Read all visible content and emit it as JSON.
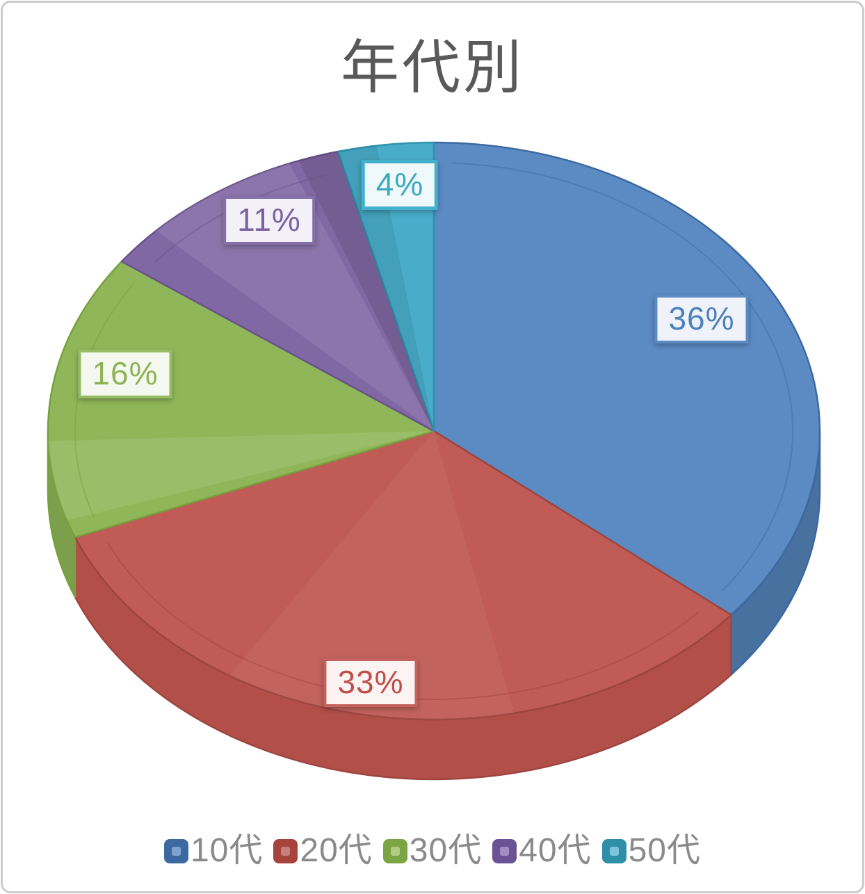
{
  "chart_data": {
    "type": "pie",
    "effect": "3d",
    "title": "年代別",
    "title_color": "#595959",
    "categories": [
      "10代",
      "20代",
      "30代",
      "40代",
      "50代"
    ],
    "values": [
      36,
      33,
      16,
      11,
      4
    ],
    "data_labels": [
      "36%",
      "33%",
      "16%",
      "11%",
      "4%"
    ],
    "unit": "%",
    "start_angle_deg": 0,
    "direction": "clockwise",
    "legend_position": "bottom",
    "legend_text_color": "#8a8a8a",
    "colors": [
      {
        "name": "blue",
        "top": "#5C8BC4",
        "wall": "#49719F",
        "stroke": "#3C69A2",
        "text": "#4E80BA",
        "box_bg": "#EFF3F9",
        "box_border": "#5C8BC4",
        "legend_outer": "#3D69A1",
        "legend_inner": "#7EA4D1"
      },
      {
        "name": "red",
        "top": "#C05B55",
        "wall": "#B24F49",
        "stroke": "#9E4540",
        "text": "#C04E4A",
        "box_bg": "#FBF4F3",
        "box_border": "#C5625D",
        "legend_outer": "#A8423D",
        "legend_inner": "#C6807B"
      },
      {
        "name": "green",
        "top": "#8FB75A",
        "wall": "#7C9F4B",
        "stroke": "#78A03F",
        "text": "#8CB455",
        "box_bg": "#F5F8EF",
        "box_border": "#97BC64",
        "legend_outer": "#7BA442",
        "legend_inner": "#B0CC83"
      },
      {
        "name": "purple",
        "top": "#8068A4",
        "wall": "#6C548E",
        "stroke": "#69538A",
        "text": "#7A61A0",
        "box_bg": "#F3F1F7",
        "box_border": "#8570A8",
        "legend_outer": "#6A5294",
        "legend_inner": "#A28CC1"
      },
      {
        "name": "teal",
        "top": "#49ADCA",
        "wall": "#3A93AE",
        "stroke": "#2F93AD",
        "text": "#3FA9C0",
        "box_bg": "#EFF8FA",
        "box_border": "#45B0CB",
        "legend_outer": "#2E8FA6",
        "legend_inner": "#7DC5DA"
      }
    ]
  }
}
